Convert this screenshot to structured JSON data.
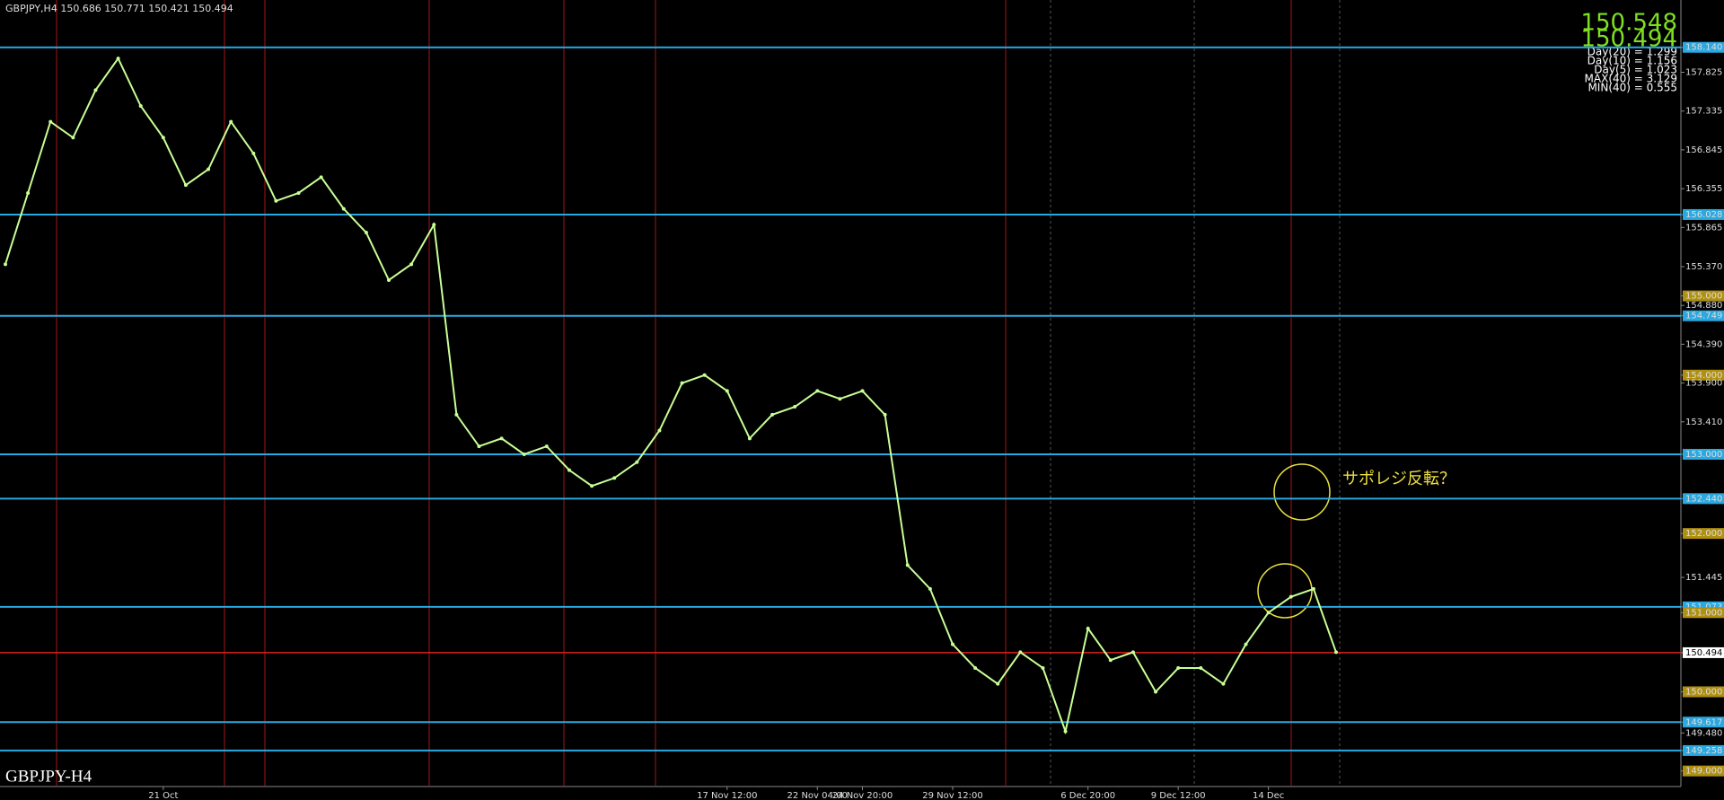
{
  "chart_data": {
    "type": "line",
    "header": "GBPJPY,H4  150.686 150.771 150.421 150.494",
    "symbol_label": "GBPJPY-H4",
    "price_big": [
      "150.548",
      "150.494"
    ],
    "stats": [
      "Day(20) = 1.299",
      "Day(10) = 1.156",
      "Day(5) = 1.023",
      "MAX(40) = 3.129",
      "MIN(40) = 0.555"
    ],
    "annotation": "サポレジ反転？",
    "color": "#c8ff96",
    "categories": [
      null,
      null,
      null,
      null,
      null,
      null,
      null,
      "21 Oct",
      null,
      null,
      null,
      null,
      null,
      null,
      null,
      null,
      null,
      null,
      null,
      null,
      null,
      null,
      null,
      null,
      null,
      null,
      null,
      null,
      null,
      null,
      null,
      null,
      "17 Nov 12:00",
      null,
      null,
      null,
      "22 Nov 04:00",
      null,
      "24 Nov 20:00",
      null,
      null,
      null,
      "29 Nov 12:00",
      null,
      null,
      null,
      null,
      null,
      "6 Dec 20:00",
      null,
      null,
      null,
      "9 Dec 12:00",
      null,
      null,
      null,
      "14 Dec",
      null,
      null,
      null
    ],
    "values": [
      155.4,
      156.3,
      157.2,
      157.0,
      157.6,
      158.0,
      157.4,
      157.0,
      156.4,
      156.6,
      157.2,
      156.8,
      156.2,
      156.3,
      156.5,
      156.1,
      155.8,
      155.2,
      155.4,
      155.9,
      153.5,
      153.1,
      153.2,
      153.0,
      153.1,
      152.8,
      152.6,
      152.7,
      152.9,
      153.3,
      153.9,
      154.0,
      153.8,
      153.2,
      153.5,
      153.6,
      153.8,
      153.7,
      153.8,
      153.5,
      151.6,
      151.3,
      150.6,
      150.3,
      150.1,
      150.5,
      150.3,
      149.5,
      150.8,
      150.4,
      150.5,
      150.0,
      150.3,
      150.3,
      150.1,
      150.6,
      151.0,
      151.2,
      151.3,
      150.5
    ],
    "ylim": [
      148.758,
      158.738
    ],
    "yticks": [
      {
        "value": 158.14,
        "label": "158.140"
      },
      157.825,
      157.335,
      156.845,
      156.355,
      156.028,
      155.865,
      {
        "value": 155.37,
        "label": "155.370"
      },
      {
        "value": 155,
        "label": "155.000"
      },
      {
        "value": 154.88,
        "label": "154.880"
      },
      154.749,
      {
        "value": 154.39,
        "label": "154.390"
      },
      {
        "value": 154,
        "label": "154.000"
      },
      {
        "value": 153.9,
        "label": "153.900"
      },
      {
        "value": 153.41,
        "label": "153.410"
      },
      {
        "value": 153,
        "label": "153.000"
      },
      {
        "value": 152.44,
        "label": "152.440"
      },
      {
        "value": 152,
        "label": "152.000"
      },
      151.445,
      151.073,
      {
        "value": 151,
        "label": "151.000"
      },
      150.494,
      {
        "value": 150,
        "label": "150.000"
      },
      149.617,
      {
        "value": 149.48,
        "label": "149.480"
      },
      149.258,
      {
        "value": 149,
        "label": "149.000"
      }
    ],
    "levels": [
      158.14,
      156.028,
      154.749,
      153,
      152.44,
      151.073,
      149.617,
      149.258
    ],
    "level_color": "#2aa8e0",
    "current_price": 150.494,
    "current_color": "#e02020"
  }
}
